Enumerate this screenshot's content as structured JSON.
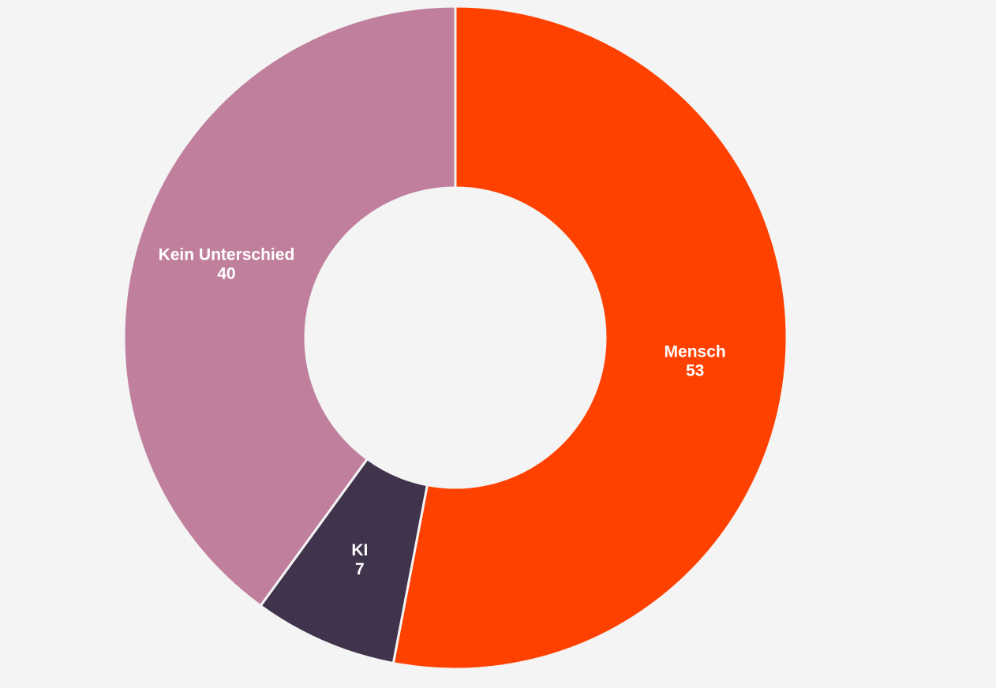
{
  "chart_data": {
    "type": "pie",
    "variant": "donut",
    "title": "",
    "slices": [
      {
        "label": "Mensch",
        "value": 53,
        "value_label": "53",
        "color": "#ff4100"
      },
      {
        "label": "KI",
        "value": 7,
        "value_label": "7",
        "color": "#40344d"
      },
      {
        "label": "Kein Unterschied",
        "value": 40,
        "value_label": "40",
        "color": "#c0809d"
      }
    ],
    "start_angle": "12 o'clock",
    "direction": "clockwise",
    "legend": "none",
    "background": "#f4f4f4"
  }
}
